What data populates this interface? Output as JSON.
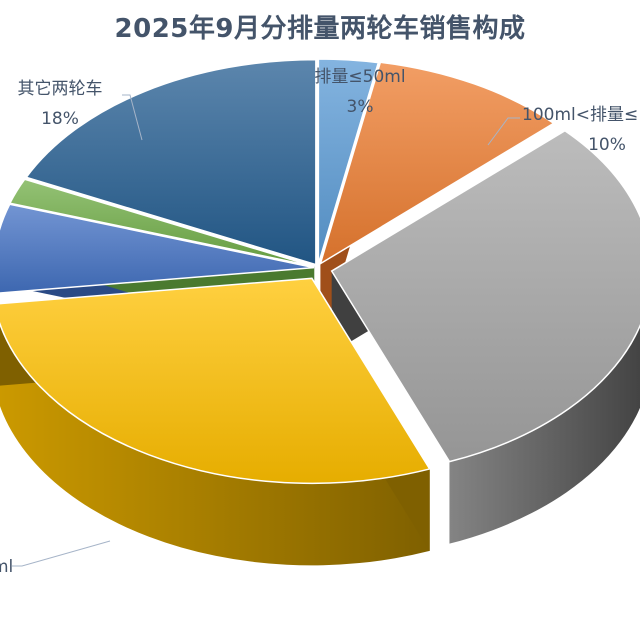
{
  "chart_data": {
    "type": "pie",
    "title": "2025年9月分排量两轮车销售构成",
    "style": "3d-exploded",
    "slices": [
      {
        "name": "排量≤50ml",
        "value": 3,
        "label_value": "3%",
        "color": "#5b9bd5"
      },
      {
        "name": "100ml<排量≤",
        "value": 10,
        "label_value": "10%",
        "color": "#ed7d31"
      },
      {
        "name": "",
        "value": 31,
        "label_value": "",
        "color": "#a5a5a5"
      },
      {
        "name": "ml",
        "value": 29,
        "label_value": "",
        "color": "#ffc000"
      },
      {
        "name": "",
        "value": 7,
        "label_value": "",
        "color": "#4472c4"
      },
      {
        "name": "",
        "value": 2,
        "label_value": "",
        "color": "#70ad47"
      },
      {
        "name": "其它两轮车",
        "value": 18,
        "label_value": "18%",
        "color": "#255e91"
      }
    ]
  }
}
